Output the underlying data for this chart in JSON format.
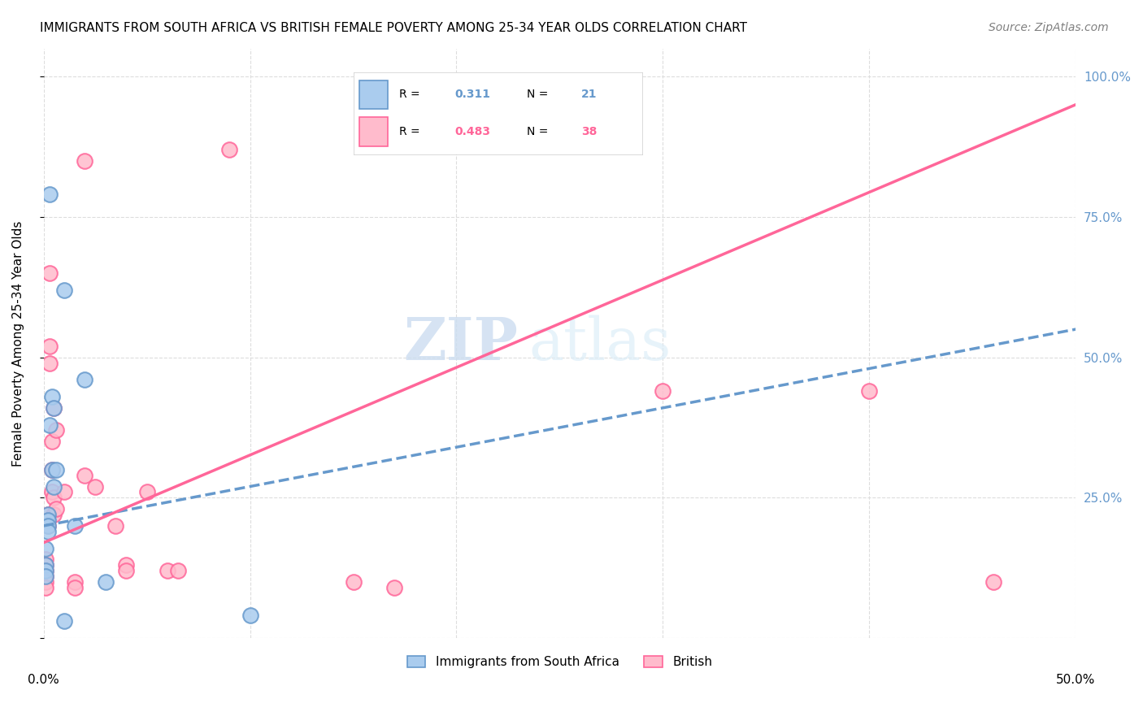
{
  "title": "IMMIGRANTS FROM SOUTH AFRICA VS BRITISH FEMALE POVERTY AMONG 25-34 YEAR OLDS CORRELATION CHART",
  "source": "Source: ZipAtlas.com",
  "ylabel": "Female Poverty Among 25-34 Year Olds",
  "watermark_zip": "ZIP",
  "watermark_atlas": "atlas",
  "blue_color": "#6699CC",
  "pink_color": "#FF6699",
  "blue_fill": "#AACCEE",
  "pink_fill": "#FFBBCC",
  "blue_scatter": [
    [
      0.001,
      0.16
    ],
    [
      0.001,
      0.13
    ],
    [
      0.001,
      0.12
    ],
    [
      0.001,
      0.11
    ],
    [
      0.002,
      0.22
    ],
    [
      0.002,
      0.21
    ],
    [
      0.002,
      0.2
    ],
    [
      0.002,
      0.19
    ],
    [
      0.003,
      0.79
    ],
    [
      0.003,
      0.38
    ],
    [
      0.004,
      0.43
    ],
    [
      0.004,
      0.3
    ],
    [
      0.005,
      0.41
    ],
    [
      0.005,
      0.27
    ],
    [
      0.006,
      0.3
    ],
    [
      0.01,
      0.62
    ],
    [
      0.01,
      0.03
    ],
    [
      0.015,
      0.2
    ],
    [
      0.02,
      0.46
    ],
    [
      0.03,
      0.1
    ],
    [
      0.1,
      0.04
    ]
  ],
  "pink_scatter": [
    [
      0.001,
      0.14
    ],
    [
      0.001,
      0.13
    ],
    [
      0.001,
      0.12
    ],
    [
      0.001,
      0.11
    ],
    [
      0.001,
      0.1
    ],
    [
      0.001,
      0.09
    ],
    [
      0.002,
      0.22
    ],
    [
      0.002,
      0.21
    ],
    [
      0.002,
      0.2
    ],
    [
      0.003,
      0.65
    ],
    [
      0.003,
      0.52
    ],
    [
      0.003,
      0.49
    ],
    [
      0.004,
      0.35
    ],
    [
      0.004,
      0.3
    ],
    [
      0.004,
      0.26
    ],
    [
      0.005,
      0.41
    ],
    [
      0.005,
      0.25
    ],
    [
      0.005,
      0.22
    ],
    [
      0.006,
      0.37
    ],
    [
      0.006,
      0.23
    ],
    [
      0.01,
      0.26
    ],
    [
      0.015,
      0.1
    ],
    [
      0.015,
      0.09
    ],
    [
      0.02,
      0.85
    ],
    [
      0.02,
      0.29
    ],
    [
      0.025,
      0.27
    ],
    [
      0.035,
      0.2
    ],
    [
      0.04,
      0.13
    ],
    [
      0.04,
      0.12
    ],
    [
      0.05,
      0.26
    ],
    [
      0.06,
      0.12
    ],
    [
      0.065,
      0.12
    ],
    [
      0.09,
      0.87
    ],
    [
      0.15,
      0.1
    ],
    [
      0.17,
      0.09
    ],
    [
      0.3,
      0.44
    ],
    [
      0.4,
      0.44
    ],
    [
      0.46,
      0.1
    ]
  ],
  "blue_line": {
    "x0": 0.0,
    "y0": 0.2,
    "x1": 0.5,
    "y1": 0.55
  },
  "pink_line": {
    "x0": 0.0,
    "y0": 0.17,
    "x1": 0.5,
    "y1": 0.95
  },
  "xlim": [
    0.0,
    0.5
  ],
  "ylim": [
    0.0,
    1.05
  ],
  "yticks": [
    0.0,
    0.25,
    0.5,
    0.75,
    1.0
  ],
  "ytick_labels": [
    "",
    "25.0%",
    "50.0%",
    "75.0%",
    "100.0%"
  ],
  "grid_color": "#DDDDDD",
  "bg_color": "#FFFFFF",
  "legend_label1": "Immigrants from South Africa",
  "legend_label2": "British",
  "r1": "0.311",
  "n1": "21",
  "r2": "0.483",
  "n2": "38"
}
